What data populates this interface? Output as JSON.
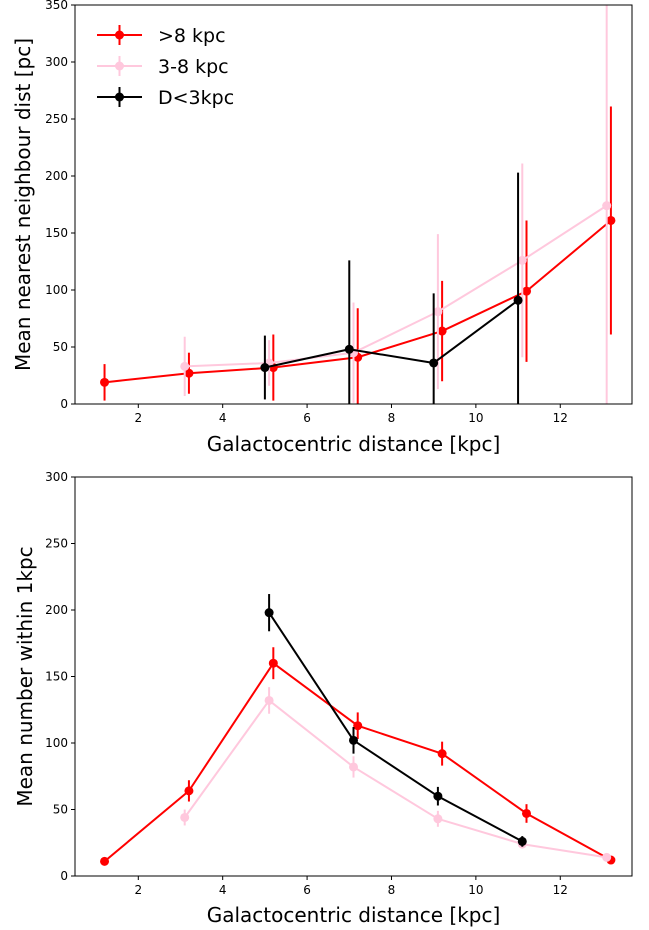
{
  "chart_data": [
    {
      "type": "line",
      "title": "",
      "xlabel": "Galactocentric distance [kpc]",
      "ylabel": "Mean nearest neighbour dist [pc]",
      "xlim": [
        0.5,
        13.7
      ],
      "ylim": [
        0,
        350
      ],
      "xticks": [
        2,
        4,
        6,
        8,
        10,
        12
      ],
      "yticks": [
        0,
        50,
        100,
        150,
        200,
        250,
        300,
        350
      ],
      "grid": false,
      "legend": "top-left",
      "series": [
        {
          "name": ">8 kpc",
          "color": "#ff0000",
          "x": [
            1.2,
            3.2,
            5.2,
            7.2,
            9.2,
            11.2,
            13.2
          ],
          "y": [
            19,
            27,
            32,
            41,
            64,
            99,
            161
          ],
          "err": [
            16,
            18,
            29,
            43,
            44,
            62,
            100
          ]
        },
        {
          "name": "3-8 kpc",
          "color": "#ffc8dd",
          "x": [
            3.1,
            5.1,
            7.1,
            9.1,
            11.1,
            13.1
          ],
          "y": [
            33,
            36,
            45,
            81,
            126,
            174
          ],
          "err": [
            26,
            20,
            44,
            68,
            85,
            176
          ]
        },
        {
          "name": "D<3kpc",
          "color": "#000000",
          "x": [
            5.0,
            7.0,
            9.0,
            11.0
          ],
          "y": [
            32,
            48,
            36,
            91
          ],
          "err": [
            28,
            78,
            61,
            112
          ]
        }
      ]
    },
    {
      "type": "line",
      "title": "",
      "xlabel": "Galactocentric distance [kpc]",
      "ylabel": "Mean number within 1kpc",
      "xlim": [
        0.5,
        13.7
      ],
      "ylim": [
        0,
        300
      ],
      "xticks": [
        2,
        4,
        6,
        8,
        10,
        12
      ],
      "yticks": [
        0,
        50,
        100,
        150,
        200,
        250,
        300
      ],
      "grid": false,
      "legend": "none",
      "series": [
        {
          "name": ">8 kpc",
          "color": "#ff0000",
          "x": [
            1.2,
            3.2,
            5.2,
            7.2,
            9.2,
            11.2,
            13.2
          ],
          "y": [
            11,
            64,
            160,
            113,
            92,
            47,
            12
          ],
          "err": [
            1,
            8,
            12,
            10,
            9,
            7,
            2
          ]
        },
        {
          "name": "3-8 kpc",
          "color": "#ffc8dd",
          "x": [
            3.1,
            5.1,
            7.1,
            9.1,
            11.1,
            13.1
          ],
          "y": [
            44,
            132,
            82,
            43,
            24,
            14
          ],
          "err": [
            6,
            10,
            8,
            6,
            3,
            2
          ]
        },
        {
          "name": "D<3kpc",
          "color": "#000000",
          "x": [
            5.1,
            7.1,
            9.1,
            11.1
          ],
          "y": [
            198,
            102,
            60,
            26
          ],
          "err": [
            14,
            10,
            7,
            4
          ]
        }
      ]
    }
  ]
}
